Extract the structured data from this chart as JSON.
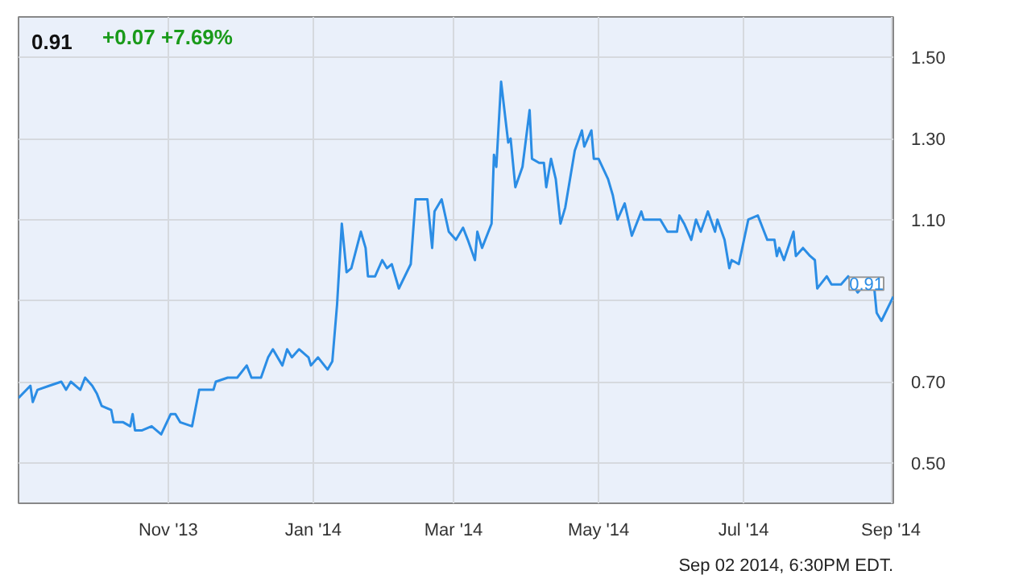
{
  "chart_data": {
    "type": "line",
    "title": "0.91",
    "subtitle": "+0.07 +7.69%",
    "annotations": [
      "Sep 02 2014, 6:30PM EDT."
    ],
    "x": [
      "2013-08-30",
      "2013-09-04",
      "2013-09-05",
      "2013-09-07",
      "2013-09-12",
      "2013-09-17",
      "2013-09-19",
      "2013-09-21",
      "2013-09-25",
      "2013-09-27",
      "2013-09-30",
      "2013-10-02",
      "2013-10-04",
      "2013-10-08",
      "2013-10-09",
      "2013-10-13",
      "2013-10-16",
      "2013-10-17",
      "2013-10-18",
      "2013-10-21",
      "2013-10-25",
      "2013-10-29",
      "2013-11-02",
      "2013-11-04",
      "2013-11-06",
      "2013-11-11",
      "2013-11-14",
      "2013-11-20",
      "2013-11-21",
      "2013-11-26",
      "2013-11-30",
      "2013-12-04",
      "2013-12-06",
      "2013-12-10",
      "2013-12-13",
      "2013-12-15",
      "2013-12-19",
      "2013-12-21",
      "2013-12-23",
      "2013-12-26",
      "2013-12-30",
      "2013-12-31",
      "2014-01-03",
      "2014-01-07",
      "2014-01-09",
      "2014-01-11",
      "2014-01-13",
      "2014-01-15",
      "2014-01-17",
      "2014-01-21",
      "2014-01-23",
      "2014-01-24",
      "2014-01-27",
      "2014-01-30",
      "2014-02-01",
      "2014-02-03",
      "2014-02-06",
      "2014-02-11",
      "2014-02-13",
      "2014-02-18",
      "2014-02-20",
      "2014-02-21",
      "2014-02-24",
      "2014-02-27",
      "2014-03-02",
      "2014-03-05",
      "2014-03-07",
      "2014-03-10",
      "2014-03-11",
      "2014-03-13",
      "2014-03-17",
      "2014-03-18",
      "2014-03-19",
      "2014-03-21",
      "2014-03-24",
      "2014-03-25",
      "2014-03-27",
      "2014-03-30",
      "2014-04-02",
      "2014-04-03",
      "2014-04-06",
      "2014-04-08",
      "2014-04-09",
      "2014-04-11",
      "2014-04-13",
      "2014-04-15",
      "2014-04-17",
      "2014-04-21",
      "2014-04-24",
      "2014-04-25",
      "2014-04-28",
      "2014-04-29",
      "2014-05-01",
      "2014-05-05",
      "2014-05-07",
      "2014-05-09",
      "2014-05-12",
      "2014-05-15",
      "2014-05-19",
      "2014-05-20",
      "2014-05-27",
      "2014-05-30",
      "2014-06-03",
      "2014-06-04",
      "2014-06-06",
      "2014-06-09",
      "2014-06-11",
      "2014-06-13",
      "2014-06-16",
      "2014-06-19",
      "2014-06-20",
      "2014-06-23",
      "2014-06-25",
      "2014-06-26",
      "2014-06-29",
      "2014-07-03",
      "2014-07-07",
      "2014-07-09",
      "2014-07-11",
      "2014-07-14",
      "2014-07-15",
      "2014-07-16",
      "2014-07-18",
      "2014-07-22",
      "2014-07-23",
      "2014-07-26",
      "2014-07-29",
      "2014-07-31",
      "2014-08-01",
      "2014-08-05",
      "2014-08-07",
      "2014-08-11",
      "2014-08-14",
      "2014-08-18",
      "2014-08-21",
      "2014-08-23",
      "2014-08-25",
      "2014-08-26",
      "2014-08-28",
      "2014-09-02"
    ],
    "series": [
      {
        "color": "#2b8de5",
        "values": [
          0.66,
          0.69,
          0.65,
          0.68,
          0.69,
          0.7,
          0.68,
          0.7,
          0.68,
          0.71,
          0.69,
          0.67,
          0.64,
          0.63,
          0.6,
          0.6,
          0.59,
          0.62,
          0.58,
          0.58,
          0.59,
          0.57,
          0.62,
          0.62,
          0.6,
          0.59,
          0.68,
          0.68,
          0.7,
          0.71,
          0.71,
          0.74,
          0.71,
          0.71,
          0.76,
          0.78,
          0.74,
          0.78,
          0.76,
          0.78,
          0.76,
          0.74,
          0.76,
          0.73,
          0.75,
          0.89,
          1.09,
          0.97,
          0.98,
          1.07,
          1.03,
          0.96,
          0.96,
          1.0,
          0.98,
          0.99,
          0.93,
          0.99,
          1.15,
          1.15,
          1.03,
          1.12,
          1.15,
          1.07,
          1.05,
          1.08,
          1.05,
          1.0,
          1.07,
          1.03,
          1.09,
          1.26,
          1.23,
          1.44,
          1.29,
          1.3,
          1.18,
          1.23,
          1.37,
          1.25,
          1.24,
          1.24,
          1.18,
          1.25,
          1.2,
          1.09,
          1.13,
          1.27,
          1.32,
          1.28,
          1.32,
          1.25,
          1.25,
          1.2,
          1.16,
          1.1,
          1.14,
          1.06,
          1.12,
          1.1,
          1.1,
          1.07,
          1.07,
          1.11,
          1.09,
          1.05,
          1.1,
          1.07,
          1.12,
          1.07,
          1.1,
          1.05,
          0.98,
          1.0,
          0.99,
          1.1,
          1.11,
          1.08,
          1.05,
          1.05,
          1.01,
          1.03,
          1.0,
          1.07,
          1.01,
          1.03,
          1.01,
          1.0,
          0.93,
          0.96,
          0.94,
          0.94,
          0.96,
          0.92,
          0.94,
          0.93,
          0.93,
          0.87,
          0.85,
          0.91
        ],
        "value_labels": [
          null,
          null,
          null,
          null,
          null,
          null,
          null,
          null,
          null,
          null,
          null,
          null,
          null,
          null,
          null,
          null,
          null,
          null,
          null,
          null,
          null,
          null,
          null,
          null,
          null,
          null,
          null,
          null,
          null,
          null,
          null,
          null,
          null,
          null,
          null,
          null,
          null,
          null,
          null,
          null,
          null,
          null,
          null,
          null,
          null,
          null,
          null,
          null,
          null,
          null,
          null,
          null,
          null,
          null,
          null,
          null,
          null,
          null,
          null,
          null,
          null,
          null,
          null,
          null,
          null,
          null,
          null,
          null,
          null,
          null,
          null,
          null,
          null,
          null,
          null,
          null,
          null,
          null,
          null,
          null,
          null,
          null,
          null,
          null,
          null,
          null,
          null,
          null,
          null,
          null,
          null,
          null,
          null,
          null,
          null,
          null,
          null,
          null,
          null,
          null,
          null,
          null,
          null,
          null,
          null,
          null,
          null,
          null,
          null,
          null,
          null,
          null,
          null,
          null,
          null,
          null,
          null,
          null,
          null,
          null,
          null,
          null,
          null,
          null,
          null,
          null,
          null,
          null,
          null,
          null,
          null,
          null,
          null,
          null,
          null,
          null,
          null,
          null,
          null,
          "0.91"
        ]
      }
    ],
    "xlim": [
      "2013-08-30",
      "2014-09-02"
    ],
    "xticks": [
      {
        "value": "2013-11-01",
        "label": "Nov '13"
      },
      {
        "value": "2014-01-01",
        "label": "Jan '14"
      },
      {
        "value": "2014-03-01",
        "label": "Mar '14"
      },
      {
        "value": "2014-05-01",
        "label": "May '14"
      },
      {
        "value": "2014-07-01",
        "label": "Jul '14"
      },
      {
        "value": "2014-09-01",
        "label": "Sep '14"
      }
    ],
    "ylim": [
      0.4,
      1.6
    ],
    "yticks": [
      {
        "value": 0.5,
        "label": "0.50"
      },
      {
        "value": 0.7,
        "label": "0.70"
      },
      {
        "value": 0.9,
        "label": null
      },
      {
        "value": 1.1,
        "label": "1.10"
      },
      {
        "value": 1.3,
        "label": "1.30"
      },
      {
        "value": 1.5,
        "label": "1.50"
      }
    ],
    "grid": true
  }
}
